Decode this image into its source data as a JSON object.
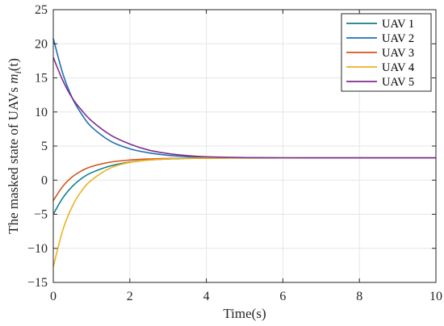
{
  "chart_data": {
    "type": "line",
    "xlabel": "Time(s)",
    "ylabel_main": "The masked state of UAVs ",
    "ylabel_math": "m",
    "ylabel_sub": "i",
    "ylabel_arg": "(t)",
    "xlim": [
      0,
      10
    ],
    "ylim": [
      -15,
      25
    ],
    "xticks": [
      0,
      2,
      4,
      6,
      8,
      10
    ],
    "yticks": [
      -15,
      -10,
      -5,
      0,
      5,
      10,
      15,
      20,
      25
    ],
    "grid": true,
    "legend_position": "top-right",
    "series": [
      {
        "name": "UAV 1",
        "color": "#0f7f8f",
        "x": [
          0,
          0.25,
          0.5,
          0.75,
          1,
          1.5,
          2,
          2.5,
          3,
          3.5,
          4,
          5,
          6,
          7,
          8,
          9,
          10
        ],
        "y": [
          -5.0,
          -2.6,
          -0.9,
          0.3,
          1.1,
          2.1,
          2.65,
          2.95,
          3.1,
          3.18,
          3.22,
          3.25,
          3.26,
          3.26,
          3.26,
          3.26,
          3.26
        ]
      },
      {
        "name": "UAV 2",
        "color": "#1f6fb5",
        "x": [
          0,
          0.25,
          0.5,
          0.75,
          1,
          1.5,
          2,
          2.5,
          3,
          3.5,
          4,
          5,
          6,
          7,
          8,
          9,
          10
        ],
        "y": [
          20.8,
          15.6,
          12.0,
          9.6,
          7.8,
          5.7,
          4.6,
          4.0,
          3.65,
          3.45,
          3.35,
          3.28,
          3.26,
          3.26,
          3.26,
          3.26,
          3.26
        ]
      },
      {
        "name": "UAV 3",
        "color": "#d95319",
        "x": [
          0,
          0.25,
          0.5,
          0.75,
          1,
          1.5,
          2,
          2.5,
          3,
          3.5,
          4,
          5,
          6,
          7,
          8,
          9,
          10
        ],
        "y": [
          -3.0,
          -0.9,
          0.5,
          1.4,
          2.0,
          2.65,
          2.95,
          3.1,
          3.18,
          3.22,
          3.24,
          3.26,
          3.26,
          3.26,
          3.26,
          3.26,
          3.26
        ]
      },
      {
        "name": "UAV 4",
        "color": "#edb120",
        "x": [
          0,
          0.25,
          0.5,
          0.75,
          1,
          1.5,
          2,
          2.5,
          3,
          3.5,
          4,
          5,
          6,
          7,
          8,
          9,
          10
        ],
        "y": [
          -12.7,
          -7.3,
          -3.8,
          -1.5,
          0.0,
          1.8,
          2.6,
          2.95,
          3.12,
          3.2,
          3.23,
          3.25,
          3.26,
          3.26,
          3.26,
          3.26,
          3.26
        ]
      },
      {
        "name": "UAV 5",
        "color": "#7e2f8e",
        "x": [
          0,
          0.25,
          0.5,
          0.75,
          1,
          1.5,
          2,
          2.5,
          3,
          3.5,
          4,
          5,
          6,
          7,
          8,
          9,
          10
        ],
        "y": [
          18.0,
          14.6,
          12.0,
          10.2,
          8.7,
          6.6,
          5.3,
          4.4,
          3.9,
          3.6,
          3.42,
          3.3,
          3.27,
          3.26,
          3.26,
          3.26,
          3.26
        ]
      }
    ]
  }
}
